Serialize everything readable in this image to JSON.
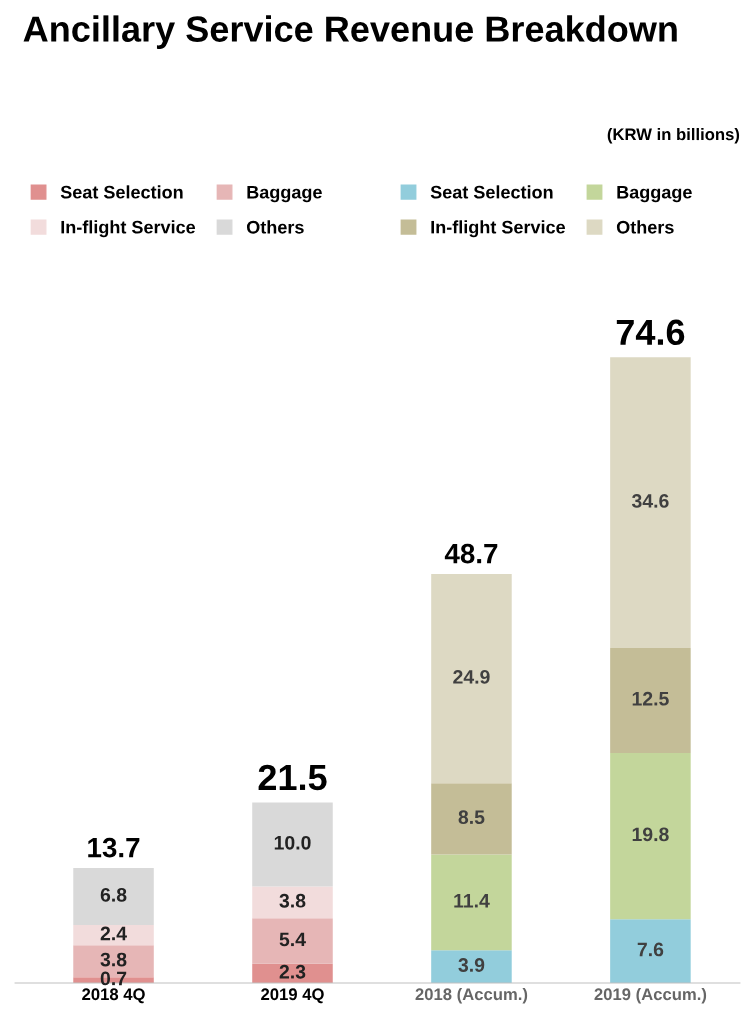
{
  "chart_data": {
    "type": "bar",
    "title": "Ancillary Service Revenue Breakdown",
    "annotations": [
      "(KRW in billions)"
    ],
    "categories": [
      "2018 4Q",
      "2019 4Q",
      "2018 (Accum.)",
      "2019 (Accum.)"
    ],
    "stacked": true,
    "legend": "top",
    "grid": false,
    "totals": [
      "13.7",
      "21.5",
      "48.7",
      "74.6"
    ],
    "series": [
      {
        "name": "Seat Selection",
        "color": "#e0908f",
        "values": [
          0.7,
          2.3,
          null,
          null
        ],
        "value_labels": [
          "0.7",
          "2.3",
          null,
          null
        ]
      },
      {
        "name": "Baggage",
        "color": "#e6b6b6",
        "values": [
          3.8,
          5.4,
          null,
          null
        ],
        "value_labels": [
          "3.8",
          "5.4",
          null,
          null
        ]
      },
      {
        "name": "In-flight Service",
        "color": "#f2dcdc",
        "values": [
          2.4,
          3.8,
          null,
          null
        ],
        "value_labels": [
          "2.4",
          "3.8",
          null,
          null
        ]
      },
      {
        "name": "Others",
        "color": "#d9d9d9",
        "values": [
          6.8,
          10.0,
          null,
          null
        ],
        "value_labels": [
          "6.8",
          "10.0",
          null,
          null
        ]
      },
      {
        "name": "Seat Selection",
        "color": "#92cddc",
        "values": [
          null,
          null,
          3.9,
          7.6
        ],
        "value_labels": [
          null,
          null,
          "3.9",
          "7.6"
        ]
      },
      {
        "name": "Baggage",
        "color": "#c3d69b",
        "values": [
          null,
          null,
          11.4,
          19.8
        ],
        "value_labels": [
          null,
          null,
          "11.4",
          "19.8"
        ]
      },
      {
        "name": "In-flight Service",
        "color": "#c4bd97",
        "values": [
          null,
          null,
          8.5,
          12.5
        ],
        "value_labels": [
          null,
          null,
          "8.5",
          "12.5"
        ]
      },
      {
        "name": "Others",
        "color": "#ddd9c3",
        "values": [
          null,
          null,
          24.9,
          34.6
        ],
        "value_labels": [
          null,
          null,
          "24.9",
          "34.6"
        ]
      }
    ]
  }
}
